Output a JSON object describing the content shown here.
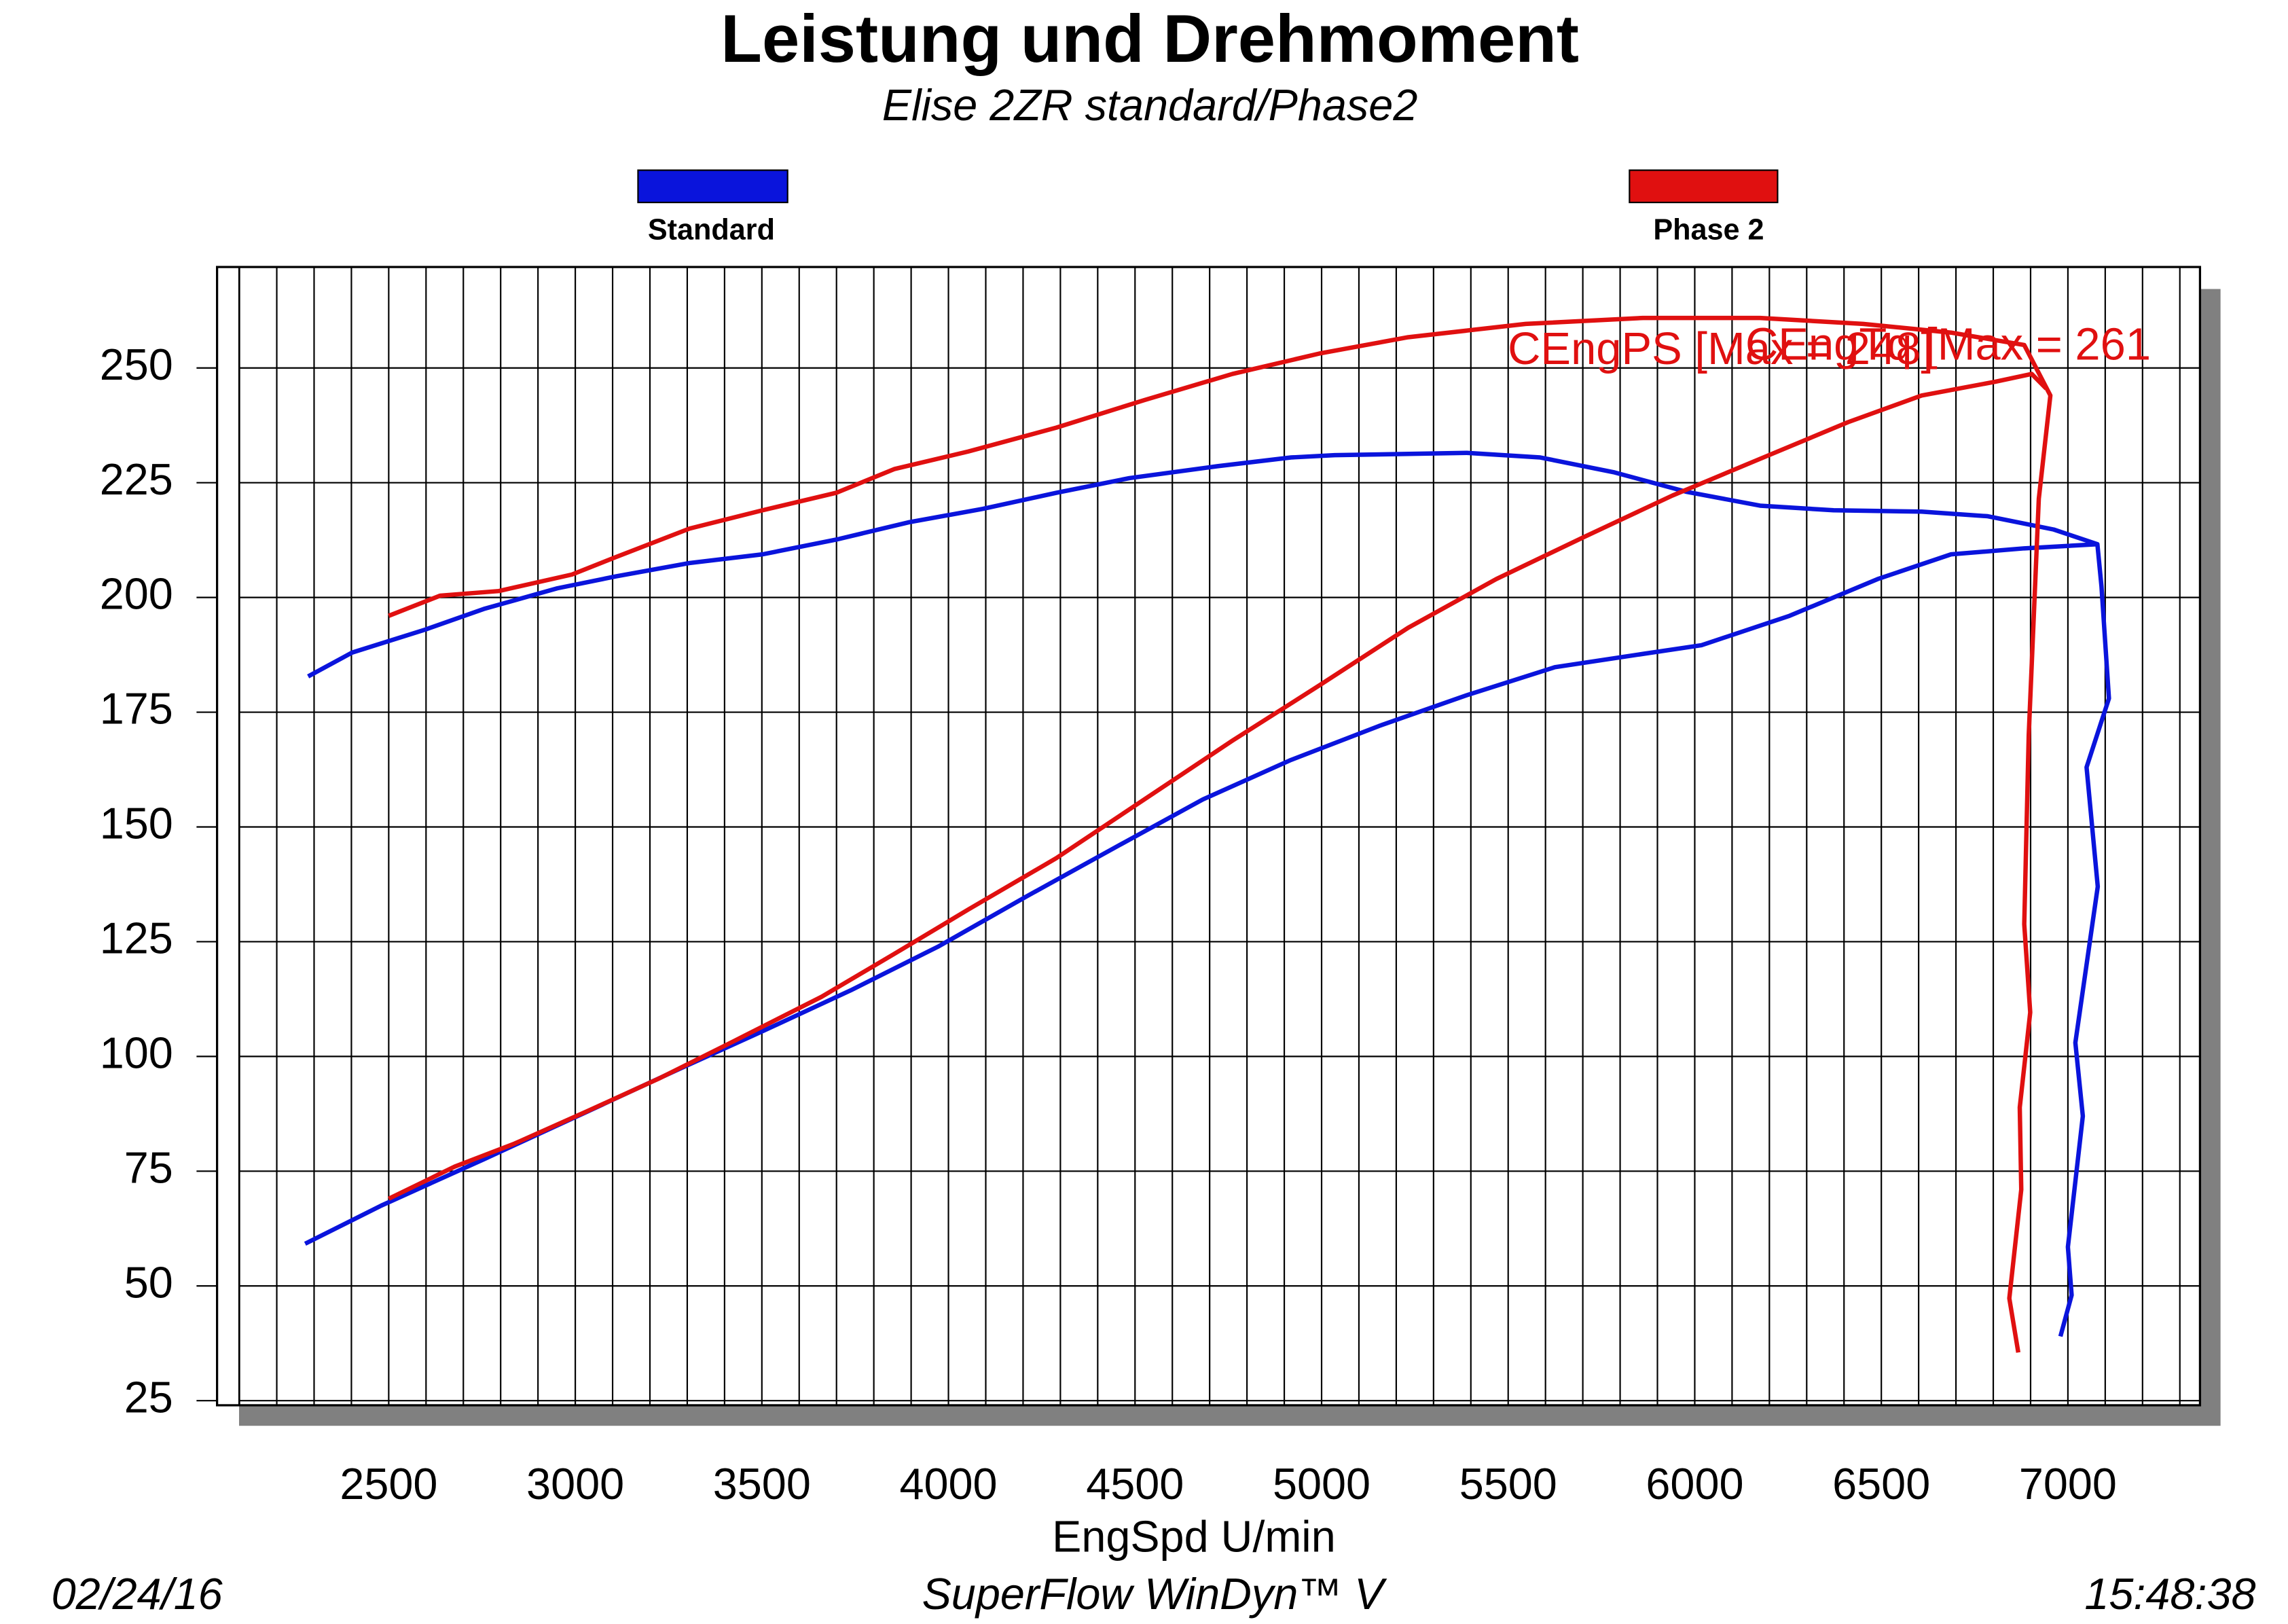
{
  "chart_data": {
    "type": "line",
    "title": "Leistung und Drehmoment",
    "subtitle": "Elise 2ZR standard/Phase2",
    "x_label": "EngSpd U/min",
    "xlim": [
      2040,
      7354
    ],
    "ylim": [
      24,
      272
    ],
    "xticks": [
      2500,
      3000,
      3500,
      4000,
      4500,
      5000,
      5500,
      6000,
      6500,
      7000
    ],
    "yticks": [
      25,
      50,
      75,
      100,
      125,
      150,
      175,
      200,
      225,
      250
    ],
    "x_grid_step": 100,
    "grid": true,
    "series": [
      {
        "name": "Standard",
        "color": "#0a14dc",
        "curves": [
          {
            "x": [
              2284,
              2402,
              2598,
              2755,
              2952,
              3109,
              3306,
              3502,
              3699,
              3895,
              4092,
              4289,
              4485,
              4721,
              4918,
              5035,
              5389,
              5586,
              5782,
              5979,
              6175,
              6372,
              6608,
              6785,
              6962,
              7079,
              7090,
              7110,
              7050,
              7080,
              7020,
              7040,
              7000,
              7010,
              6980
            ],
            "values": [
              182.8,
              188,
              193,
              197.5,
              202,
              204.6,
              207.5,
              209.4,
              212.6,
              216.4,
              219.3,
              222.8,
              226,
              228.6,
              230.5,
              231,
              231.5,
              230.5,
              227.3,
              223,
              220,
              219,
              218.7,
              217.7,
              214.8,
              211.6,
              202.4,
              178,
              163,
              137,
              103,
              87,
              58.5,
              48,
              39
            ]
          },
          {
            "x": [
              2276,
              2480,
              2755,
              3030,
              3266,
              3502,
              3738,
              3974,
              4210,
              4446,
              4682,
              4918,
              5154,
              5389,
              5625,
              5861,
              6018,
              6254,
              6490,
              6687,
              6883,
              7079
            ],
            "values": [
              59.2,
              67.5,
              77.6,
              87.9,
              96.8,
              105.5,
              114.4,
              124,
              134.9,
              145.5,
              156,
              164.6,
              172,
              178.7,
              184.8,
              187.7,
              189.6,
              196,
              204,
              209.4,
              210.7,
              211.6
            ]
          }
        ]
      },
      {
        "name": "Phase 2",
        "color": "#e01010",
        "curves": [
          {
            "x": [
              2500,
              2638,
              2795,
              2991,
              3109,
              3306,
              3502,
              3699,
              3856,
              4053,
              4289,
              4525,
              4761,
              4997,
              5232,
              5547,
              5861,
              6175,
              6451,
              6687,
              6883,
              6953,
              6922,
              6895,
              6883,
              6899,
              6871,
              6875,
              6843,
              6867
            ],
            "values": [
              196,
              200.4,
              201.4,
              205,
              208.8,
              215,
              219,
              222.8,
              228,
              231.8,
              237,
              243,
              248.7,
              253.2,
              256.7,
              259.6,
              260.9,
              260.9,
              259.6,
              257.7,
              255,
              244,
              221.5,
              170,
              128.8,
              109.6,
              88.9,
              71,
              47.3,
              35.5
            ]
          },
          {
            "x": [
              2500,
              2677,
              2834,
              3030,
              3227,
              3424,
              3660,
              3856,
              4053,
              4289,
              4525,
              4761,
              4997,
              5232,
              5468,
              5704,
              5940,
              6175,
              6411,
              6608,
              6805,
              6903,
              6942
            ],
            "values": [
              69,
              76,
              80.9,
              88,
              95.3,
              103.3,
              113,
              122.4,
              132,
              143.2,
              156,
              168.8,
              181,
              193.4,
              204,
              213.2,
              222.2,
              230.2,
              238.2,
              244,
              247,
              248.7,
              245.5
            ]
          }
        ]
      }
    ],
    "annotations": [
      "CEngPS [Max = 248]",
      "CEngTq [Max = 261"
    ]
  },
  "footer": {
    "date": "02/24/16",
    "software": "SuperFlow WinDyn™ V",
    "time": "15:48:38"
  }
}
